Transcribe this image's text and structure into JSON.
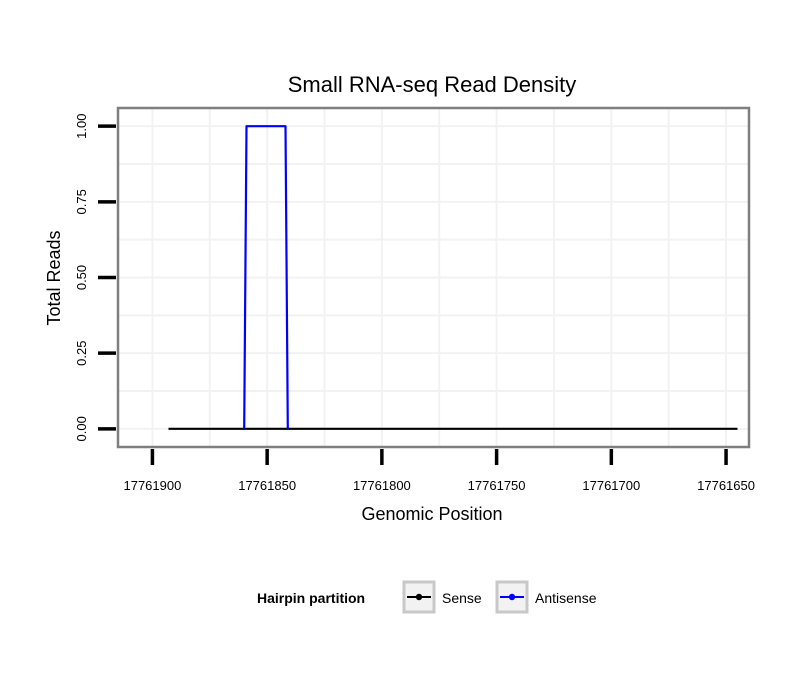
{
  "chart_data": {
    "type": "line",
    "title": "Small RNA-seq Read Density",
    "xlabel": "Genomic Position",
    "ylabel": "Total Reads",
    "x_reversed": true,
    "xlim": [
      17761915,
      17761640
    ],
    "ylim": [
      -0.06,
      1.06
    ],
    "x_ticks": [
      17761900,
      17761850,
      17761800,
      17761750,
      17761700,
      17761650
    ],
    "x_tick_labels": [
      "17761900",
      "17761850",
      "17761800",
      "17761750",
      "17761700",
      "17761650"
    ],
    "y_ticks": [
      0,
      0.25,
      0.5,
      0.75,
      1.0
    ],
    "y_tick_labels": [
      "0.00",
      "0.25",
      "0.50",
      "0.75",
      "1.00"
    ],
    "grid": true,
    "series": [
      {
        "name": "Sense",
        "color": "#000000",
        "x": [
          17761893,
          17761645
        ],
        "y": [
          0,
          0
        ]
      },
      {
        "name": "Antisense",
        "color": "#0000ff",
        "x": [
          17761860,
          17761859,
          17761842,
          17761841
        ],
        "y": [
          0,
          1,
          1,
          0
        ]
      }
    ],
    "legend": {
      "title": "Hairpin partition",
      "position": "bottom",
      "entries": [
        "Sense",
        "Antisense"
      ]
    }
  }
}
